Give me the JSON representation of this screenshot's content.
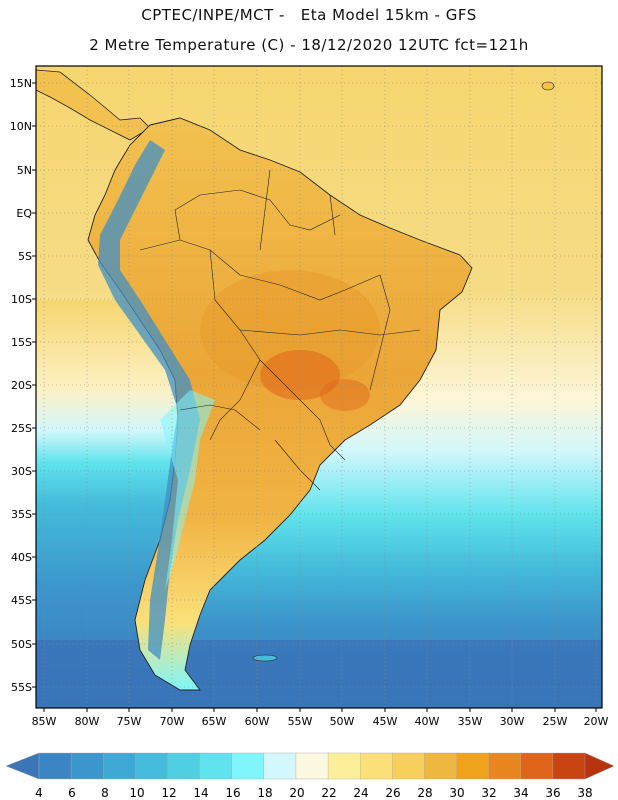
{
  "header": {
    "title_line1": "CPTEC/INPE/MCT -   Eta Model 15km - GFS",
    "title_line2": "2 Metre Temperature (C) - 18/12/2020 12UTC fct=121h"
  },
  "map": {
    "lat_labels": [
      "15N",
      "10N",
      "5N",
      "EQ",
      "5S",
      "10S",
      "15S",
      "20S",
      "25S",
      "30S",
      "35S",
      "40S",
      "45S",
      "50S",
      "55S"
    ],
    "lon_labels": [
      "85W",
      "80W",
      "75W",
      "70W",
      "65W",
      "60W",
      "55W",
      "50W",
      "45W",
      "40W",
      "35W",
      "30W",
      "25W",
      "20W"
    ],
    "colors": {
      "land_hot": "#e89a2c",
      "land_warm": "#f2c150",
      "ocean_tropic": "#f6d66f",
      "ocean_cold": "#3a74b8",
      "andes": "#3f8fc5"
    }
  },
  "colorbar": {
    "labels": [
      "4",
      "6",
      "8",
      "10",
      "12",
      "14",
      "16",
      "18",
      "20",
      "22",
      "24",
      "26",
      "28",
      "30",
      "32",
      "34",
      "36",
      "38"
    ],
    "colors": [
      "#3a76b8",
      "#3b86c2",
      "#3c97cc",
      "#3ea9d4",
      "#45bcdb",
      "#4fcfe2",
      "#5fe3ec",
      "#7ff6fb",
      "#d2f7fc",
      "#fdf8e0",
      "#fdef9a",
      "#fbe079",
      "#f6cf5c",
      "#eeb73f",
      "#f0a31a",
      "#e9861f",
      "#e0641a",
      "#c84413",
      "#b8330e"
    ]
  }
}
